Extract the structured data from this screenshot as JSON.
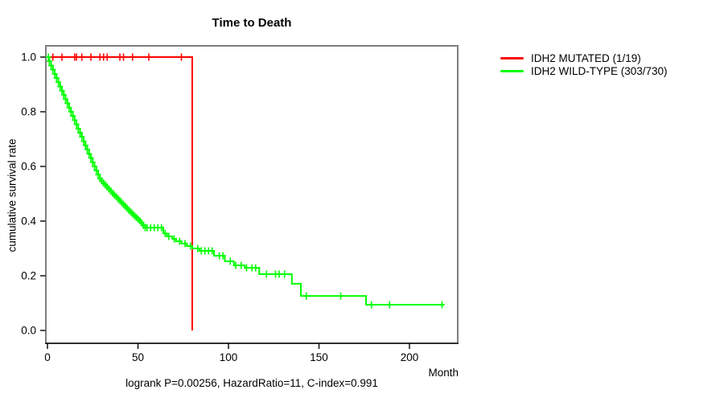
{
  "chart_data": {
    "type": "line",
    "subtype": "kaplan-meier-step",
    "title": "Time to Death",
    "xlabel": "Month",
    "ylabel": "cumulative survival rate",
    "annotation": "logrank P=0.00256, HazardRatio=11, C-index=0.991",
    "xlim": [
      0,
      227
    ],
    "ylim": [
      0.0,
      1.0
    ],
    "grid": false,
    "legend_position": "right-outside",
    "frame_color": "#7f7f7f",
    "axis_color": "#000000",
    "xticks": [
      {
        "v": 0,
        "label": "0"
      },
      {
        "v": 50,
        "label": "50"
      },
      {
        "v": 100,
        "label": "100"
      },
      {
        "v": 150,
        "label": "150"
      },
      {
        "v": 200,
        "label": "200"
      }
    ],
    "yticks": [
      {
        "v": 0.0,
        "label": "0.0"
      },
      {
        "v": 0.2,
        "label": "0.2"
      },
      {
        "v": 0.4,
        "label": "0.4"
      },
      {
        "v": 0.6,
        "label": "0.6"
      },
      {
        "v": 0.8,
        "label": "0.8"
      },
      {
        "v": 1.0,
        "label": "1.0"
      }
    ],
    "series": [
      {
        "id": "idh2-mutated",
        "name": "IDH2 MUTATED (1/19)",
        "color": "#ff0000",
        "start": [
          0,
          1.0
        ],
        "steps": [
          [
            80,
            0.0
          ]
        ],
        "end_time": 80,
        "censor_times": [
          3,
          8,
          15,
          16,
          19,
          24,
          29,
          31,
          33,
          40,
          42,
          47,
          56,
          74
        ]
      },
      {
        "id": "idh2-wild-type",
        "name": "IDH2 WILD-TYPE (303/730)",
        "color": "#00ff00",
        "start": [
          0,
          1.0
        ],
        "steps": [
          [
            1,
            0.985
          ],
          [
            2,
            0.969
          ],
          [
            3,
            0.954
          ],
          [
            4,
            0.938
          ],
          [
            5,
            0.923
          ],
          [
            6,
            0.908
          ],
          [
            7,
            0.892
          ],
          [
            8,
            0.877
          ],
          [
            9,
            0.862
          ],
          [
            10,
            0.846
          ],
          [
            11,
            0.831
          ],
          [
            12,
            0.815
          ],
          [
            13,
            0.8
          ],
          [
            14,
            0.785
          ],
          [
            15,
            0.769
          ],
          [
            16,
            0.754
          ],
          [
            17,
            0.738
          ],
          [
            18,
            0.723
          ],
          [
            19,
            0.708
          ],
          [
            20,
            0.692
          ],
          [
            21,
            0.677
          ],
          [
            22,
            0.662
          ],
          [
            23,
            0.646
          ],
          [
            24,
            0.631
          ],
          [
            25,
            0.615
          ],
          [
            26,
            0.6
          ],
          [
            27,
            0.585
          ],
          [
            28,
            0.57
          ],
          [
            29,
            0.556
          ],
          [
            30,
            0.547
          ],
          [
            31,
            0.539
          ],
          [
            32,
            0.532
          ],
          [
            33,
            0.525
          ],
          [
            34,
            0.517
          ],
          [
            35,
            0.51
          ],
          [
            36,
            0.502
          ],
          [
            37,
            0.496
          ],
          [
            38,
            0.489
          ],
          [
            39,
            0.482
          ],
          [
            40,
            0.475
          ],
          [
            41,
            0.468
          ],
          [
            42,
            0.461
          ],
          [
            43,
            0.454
          ],
          [
            44,
            0.447
          ],
          [
            45,
            0.44
          ],
          [
            46,
            0.433
          ],
          [
            47,
            0.427
          ],
          [
            48,
            0.42
          ],
          [
            49,
            0.414
          ],
          [
            50,
            0.408
          ],
          [
            51,
            0.401
          ],
          [
            52,
            0.394
          ],
          [
            53,
            0.385
          ],
          [
            54,
            0.376
          ],
          [
            64,
            0.355
          ],
          [
            66,
            0.344
          ],
          [
            69,
            0.335
          ],
          [
            71,
            0.326
          ],
          [
            74,
            0.318
          ],
          [
            77,
            0.309
          ],
          [
            80,
            0.3
          ],
          [
            84,
            0.291
          ],
          [
            92,
            0.273
          ],
          [
            98,
            0.253
          ],
          [
            103,
            0.238
          ],
          [
            109,
            0.229
          ],
          [
            117,
            0.206
          ],
          [
            135,
            0.171
          ],
          [
            140,
            0.126
          ],
          [
            176,
            0.094
          ]
        ],
        "end_time": 218,
        "censor_times": [
          0.5,
          1,
          2,
          3,
          4,
          5,
          6,
          7,
          8,
          9,
          10,
          11,
          12,
          13,
          14,
          15,
          16,
          17,
          18,
          19,
          20,
          21,
          22,
          23,
          24,
          25,
          26,
          27,
          28,
          29,
          30,
          31,
          32,
          33,
          34,
          35,
          36,
          37,
          38,
          39,
          40,
          41,
          42,
          43,
          44,
          45,
          46,
          47,
          48,
          49,
          50,
          51,
          52,
          53,
          54,
          55,
          57,
          59,
          61,
          63,
          65,
          67,
          70,
          73,
          76,
          79,
          83,
          85,
          87,
          89,
          91,
          95,
          97,
          101,
          104,
          107,
          110,
          113,
          115,
          121,
          126,
          128,
          131,
          143,
          162,
          179,
          189,
          218
        ]
      }
    ]
  }
}
